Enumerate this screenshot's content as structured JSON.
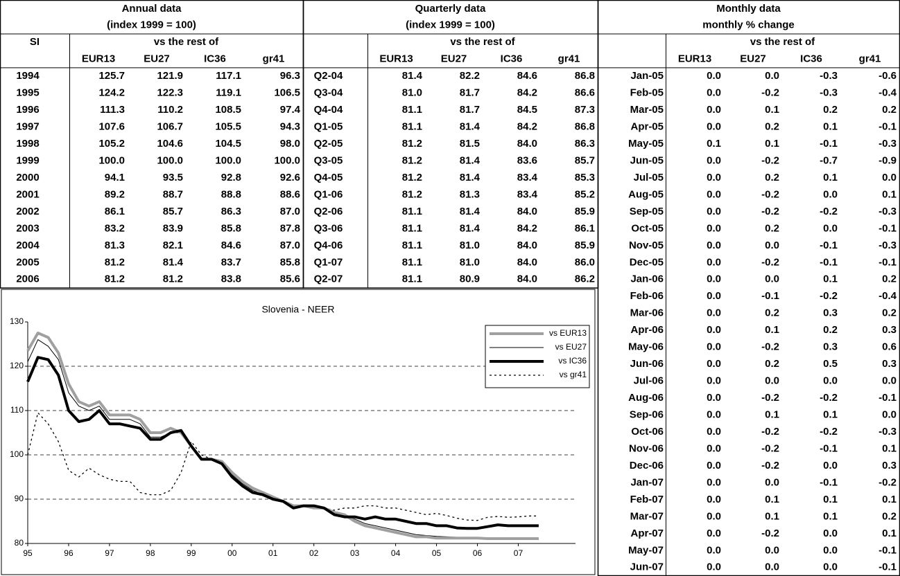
{
  "tables": [
    {
      "title": "Annual data",
      "subtitle": "(index 1999 = 100)",
      "row_header": "SI",
      "group": "vs the rest of",
      "columns": [
        "EUR13",
        "EU27",
        "IC36",
        "gr41"
      ],
      "rows": [
        [
          "1994",
          "125.7",
          "121.9",
          "117.1",
          "96.3"
        ],
        [
          "1995",
          "124.2",
          "122.3",
          "119.1",
          "106.5"
        ],
        [
          "1996",
          "111.3",
          "110.2",
          "108.5",
          "97.4"
        ],
        [
          "1997",
          "107.6",
          "106.7",
          "105.5",
          "94.3"
        ],
        [
          "1998",
          "105.2",
          "104.6",
          "104.5",
          "98.0"
        ],
        [
          "1999",
          "100.0",
          "100.0",
          "100.0",
          "100.0"
        ],
        [
          "2000",
          "94.1",
          "93.5",
          "92.8",
          "92.6"
        ],
        [
          "2001",
          "89.2",
          "88.7",
          "88.8",
          "88.6"
        ],
        [
          "2002",
          "86.1",
          "85.7",
          "86.3",
          "87.0"
        ],
        [
          "2003",
          "83.2",
          "83.9",
          "85.8",
          "87.8"
        ],
        [
          "2004",
          "81.3",
          "82.1",
          "84.6",
          "87.0"
        ],
        [
          "2005",
          "81.2",
          "81.4",
          "83.7",
          "85.8"
        ],
        [
          "2006",
          "81.2",
          "81.2",
          "83.8",
          "85.6"
        ]
      ]
    },
    {
      "title": "Quarterly data",
      "subtitle": "(index 1999 = 100)",
      "group": "vs the rest of",
      "columns": [
        "EUR13",
        "EU27",
        "IC36",
        "gr41"
      ],
      "rows": [
        [
          "Q2-04",
          "81.4",
          "82.2",
          "84.6",
          "86.8"
        ],
        [
          "Q3-04",
          "81.0",
          "81.7",
          "84.2",
          "86.6"
        ],
        [
          "Q4-04",
          "81.1",
          "81.7",
          "84.5",
          "87.3"
        ],
        [
          "Q1-05",
          "81.1",
          "81.4",
          "84.2",
          "86.8"
        ],
        [
          "Q2-05",
          "81.2",
          "81.5",
          "84.0",
          "86.3"
        ],
        [
          "Q3-05",
          "81.2",
          "81.4",
          "83.6",
          "85.7"
        ],
        [
          "Q4-05",
          "81.2",
          "81.4",
          "83.4",
          "85.3"
        ],
        [
          "Q1-06",
          "81.2",
          "81.3",
          "83.4",
          "85.2"
        ],
        [
          "Q2-06",
          "81.1",
          "81.4",
          "84.0",
          "85.9"
        ],
        [
          "Q3-06",
          "81.1",
          "81.4",
          "84.2",
          "86.1"
        ],
        [
          "Q4-06",
          "81.1",
          "81.0",
          "84.0",
          "85.9"
        ],
        [
          "Q1-07",
          "81.1",
          "81.0",
          "84.0",
          "86.0"
        ],
        [
          "Q2-07",
          "81.1",
          "80.9",
          "84.0",
          "86.2"
        ]
      ]
    },
    {
      "title": "Monthly data",
      "subtitle": "monthly % change",
      "group": "vs the rest of",
      "columns": [
        "EUR13",
        "EU27",
        "IC36",
        "gr41"
      ],
      "rows": [
        [
          "Jan-05",
          "0.0",
          "0.0",
          "-0.3",
          "-0.6"
        ],
        [
          "Feb-05",
          "0.0",
          "-0.2",
          "-0.3",
          "-0.4"
        ],
        [
          "Mar-05",
          "0.0",
          "0.1",
          "0.2",
          "0.2"
        ],
        [
          "Apr-05",
          "0.0",
          "0.2",
          "0.1",
          "-0.1"
        ],
        [
          "May-05",
          "0.1",
          "0.1",
          "-0.1",
          "-0.3"
        ],
        [
          "Jun-05",
          "0.0",
          "-0.2",
          "-0.7",
          "-0.9"
        ],
        [
          "Jul-05",
          "0.0",
          "0.2",
          "0.1",
          "0.0"
        ],
        [
          "Aug-05",
          "0.0",
          "-0.2",
          "0.0",
          "0.1"
        ],
        [
          "Sep-05",
          "0.0",
          "-0.2",
          "-0.2",
          "-0.3"
        ],
        [
          "Oct-05",
          "0.0",
          "0.2",
          "0.0",
          "-0.1"
        ],
        [
          "Nov-05",
          "0.0",
          "0.0",
          "-0.1",
          "-0.3"
        ],
        [
          "Dec-05",
          "0.0",
          "-0.2",
          "-0.1",
          "-0.1"
        ],
        [
          "Jan-06",
          "0.0",
          "0.0",
          "0.1",
          "0.2"
        ],
        [
          "Feb-06",
          "0.0",
          "-0.1",
          "-0.2",
          "-0.4"
        ],
        [
          "Mar-06",
          "0.0",
          "0.2",
          "0.3",
          "0.2"
        ],
        [
          "Apr-06",
          "0.0",
          "0.1",
          "0.2",
          "0.3"
        ],
        [
          "May-06",
          "0.0",
          "-0.2",
          "0.3",
          "0.6"
        ],
        [
          "Jun-06",
          "0.0",
          "0.2",
          "0.5",
          "0.3"
        ],
        [
          "Jul-06",
          "0.0",
          "0.0",
          "0.0",
          "0.0"
        ],
        [
          "Aug-06",
          "0.0",
          "-0.2",
          "-0.2",
          "-0.1"
        ],
        [
          "Sep-06",
          "0.0",
          "0.1",
          "0.1",
          "0.0"
        ],
        [
          "Oct-06",
          "0.0",
          "-0.2",
          "-0.2",
          "-0.3"
        ],
        [
          "Nov-06",
          "0.0",
          "-0.2",
          "-0.1",
          "0.1"
        ],
        [
          "Dec-06",
          "0.0",
          "-0.2",
          "0.0",
          "0.3"
        ],
        [
          "Jan-07",
          "0.0",
          "0.0",
          "-0.1",
          "-0.2"
        ],
        [
          "Feb-07",
          "0.0",
          "0.1",
          "0.1",
          "0.1"
        ],
        [
          "Mar-07",
          "0.0",
          "0.1",
          "0.1",
          "0.2"
        ],
        [
          "Apr-07",
          "0.0",
          "-0.2",
          "0.0",
          "0.1"
        ],
        [
          "May-07",
          "0.0",
          "0.0",
          "0.0",
          "-0.1"
        ],
        [
          "Jun-07",
          "0.0",
          "0.0",
          "0.0",
          "-0.1"
        ]
      ]
    }
  ],
  "chart_data": {
    "type": "line",
    "title": "Slovenia - NEER",
    "x": [
      1995,
      1995.25,
      1995.5,
      1995.75,
      1996,
      1996.25,
      1996.5,
      1996.75,
      1997,
      1997.25,
      1997.5,
      1997.75,
      1998,
      1998.25,
      1998.5,
      1998.75,
      1999,
      1999.25,
      1999.5,
      1999.75,
      2000,
      2000.25,
      2000.5,
      2000.75,
      2001,
      2001.25,
      2001.5,
      2001.75,
      2002,
      2002.25,
      2002.5,
      2002.75,
      2003,
      2003.25,
      2003.5,
      2003.75,
      2004,
      2004.25,
      2004.5,
      2004.75,
      2005,
      2005.25,
      2005.5,
      2005.75,
      2006,
      2006.25,
      2006.5,
      2006.75,
      2007,
      2007.25,
      2007.5
    ],
    "xlim": [
      1995,
      2008.4
    ],
    "xticks": [
      {
        "value": 1995,
        "label": "95"
      },
      {
        "value": 1996,
        "label": "96"
      },
      {
        "value": 1997,
        "label": "97"
      },
      {
        "value": 1998,
        "label": "98"
      },
      {
        "value": 1999,
        "label": "99"
      },
      {
        "value": 2000,
        "label": "00"
      },
      {
        "value": 2001,
        "label": "01"
      },
      {
        "value": 2002,
        "label": "02"
      },
      {
        "value": 2003,
        "label": "03"
      },
      {
        "value": 2004,
        "label": "04"
      },
      {
        "value": 2005,
        "label": "05"
      },
      {
        "value": 2006,
        "label": "06"
      },
      {
        "value": 2007,
        "label": "07"
      }
    ],
    "ylim": [
      80,
      130
    ],
    "yticks": [
      80,
      90,
      100,
      110,
      120,
      130
    ],
    "grid": true,
    "legend": "upper right",
    "series": [
      {
        "name": "vs EUR13",
        "color": "#a0a0a0",
        "style": "thick",
        "values": [
          123.5,
          127.5,
          126.5,
          123,
          116,
          112,
          111,
          112,
          109,
          109,
          109,
          108,
          105,
          105,
          106,
          105,
          102,
          99,
          99,
          98.5,
          96,
          94,
          92.5,
          91.5,
          90.5,
          89.5,
          88.5,
          88.5,
          88,
          88,
          87,
          86.5,
          85,
          84,
          83.5,
          83,
          82.5,
          82,
          81.5,
          81.5,
          81.2,
          81.2,
          81.2,
          81.2,
          81.2,
          81.1,
          81.1,
          81.1,
          81.1,
          81.1,
          81.1
        ]
      },
      {
        "name": "vs EU27",
        "color": "#000000",
        "style": "thin",
        "values": [
          121,
          126,
          124.5,
          121.5,
          114,
          111,
          110,
          111,
          108,
          108,
          108,
          107,
          104,
          104,
          105,
          105,
          102,
          99,
          99,
          98.5,
          95.5,
          93.5,
          92,
          91,
          90,
          89.5,
          88.5,
          88.5,
          88,
          88,
          86.5,
          86,
          85.5,
          84.5,
          84,
          83.5,
          83,
          82.5,
          82,
          81.8,
          81.6,
          81.5,
          81.4,
          81.3,
          81.3,
          81.2,
          81.2,
          81.0,
          81.0,
          80.9,
          80.9
        ]
      },
      {
        "name": "vs IC36",
        "color": "#000000",
        "style": "thick",
        "values": [
          116.5,
          122,
          121.5,
          118,
          110,
          107.5,
          108,
          110,
          107,
          107,
          106.5,
          106,
          103.5,
          103.5,
          105,
          105.5,
          102,
          99,
          99,
          98,
          95,
          93,
          91.5,
          91,
          90,
          89.5,
          88,
          88.5,
          88.5,
          88,
          86.5,
          86,
          86,
          85.5,
          86,
          85.5,
          85.5,
          85,
          84.5,
          84.5,
          84,
          84,
          83.5,
          83.4,
          83.4,
          83.8,
          84.2,
          84,
          84,
          84,
          84
        ]
      },
      {
        "name": "vs gr41",
        "color": "#000000",
        "style": "dotted",
        "values": [
          100,
          109.5,
          107,
          103,
          96.5,
          95,
          97,
          95.5,
          94.5,
          94,
          94,
          91.5,
          91,
          91,
          92,
          96,
          103,
          100,
          99,
          98.5,
          95,
          93,
          91.5,
          91,
          90,
          89.5,
          88,
          88.5,
          88.5,
          88,
          87.5,
          88,
          88,
          88.5,
          88.5,
          88,
          88,
          87.5,
          87,
          86.5,
          86.8,
          86.3,
          85.7,
          85.3,
          85.2,
          85.9,
          86.1,
          85.9,
          86.0,
          86.2,
          86.2
        ]
      }
    ]
  }
}
